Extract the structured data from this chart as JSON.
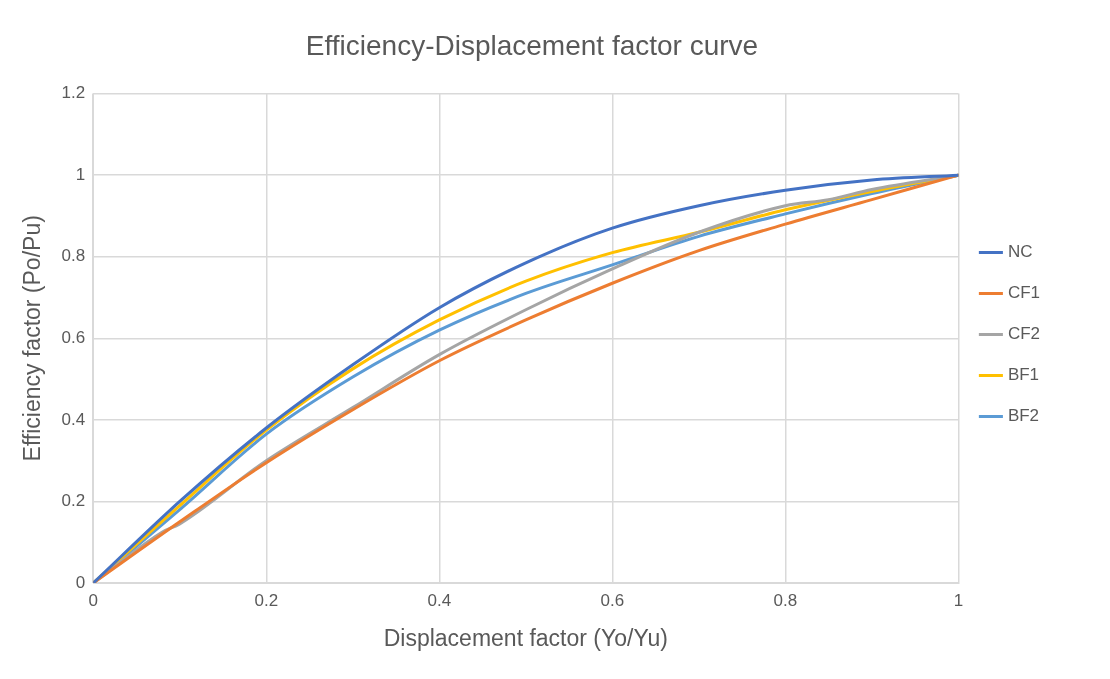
{
  "chart_data": {
    "type": "line",
    "title": "Efficiency-Displacement factor curve",
    "xlabel": "Displacement factor (Yo/Yu)",
    "ylabel": "Efficiency factor (Po/Pu)",
    "xlim": [
      0,
      1
    ],
    "xticks": [
      0,
      0.2,
      0.4,
      0.6,
      0.8,
      1
    ],
    "ylim": [
      0,
      1.2
    ],
    "yticks": [
      0,
      0.2,
      0.4,
      0.6,
      0.8,
      1,
      1.2
    ],
    "grid": true,
    "legend": "right",
    "marker": "none",
    "line_style": "solid",
    "series": [
      {
        "name": "NC",
        "color": "#4472c4",
        "x": [
          0,
          0.1,
          0.2,
          0.3,
          0.4,
          0.5,
          0.6,
          0.7,
          0.8,
          0.9,
          1
        ],
        "values": [
          0,
          0.2,
          0.38,
          0.535,
          0.675,
          0.785,
          0.87,
          0.925,
          0.963,
          0.988,
          1
        ]
      },
      {
        "name": "CF1",
        "color": "#ed7d31",
        "x": [
          0,
          0.1,
          0.2,
          0.3,
          0.4,
          0.5,
          0.6,
          0.7,
          0.8,
          0.9,
          1
        ],
        "values": [
          0,
          0.15,
          0.295,
          0.425,
          0.545,
          0.645,
          0.735,
          0.815,
          0.88,
          0.94,
          1
        ]
      },
      {
        "name": "CF2",
        "color": "#a5a5a5",
        "x": [
          0,
          0.08,
          0.1,
          0.2,
          0.3,
          0.4,
          0.5,
          0.6,
          0.7,
          0.8,
          0.85,
          0.9,
          1
        ],
        "values": [
          0,
          0.125,
          0.145,
          0.3,
          0.43,
          0.56,
          0.67,
          0.77,
          0.86,
          0.925,
          0.94,
          0.965,
          1
        ]
      },
      {
        "name": "BF1",
        "color": "#ffc000",
        "x": [
          0,
          0.1,
          0.2,
          0.3,
          0.4,
          0.5,
          0.6,
          0.7,
          0.8,
          0.9,
          1
        ],
        "values": [
          0,
          0.19,
          0.375,
          0.525,
          0.645,
          0.74,
          0.81,
          0.86,
          0.915,
          0.96,
          1
        ]
      },
      {
        "name": "BF2",
        "color": "#5b9bd5",
        "x": [
          0,
          0.1,
          0.2,
          0.3,
          0.4,
          0.5,
          0.6,
          0.7,
          0.8,
          0.9,
          1
        ],
        "values": [
          0,
          0.18,
          0.365,
          0.505,
          0.62,
          0.71,
          0.78,
          0.85,
          0.905,
          0.955,
          1
        ]
      }
    ]
  }
}
